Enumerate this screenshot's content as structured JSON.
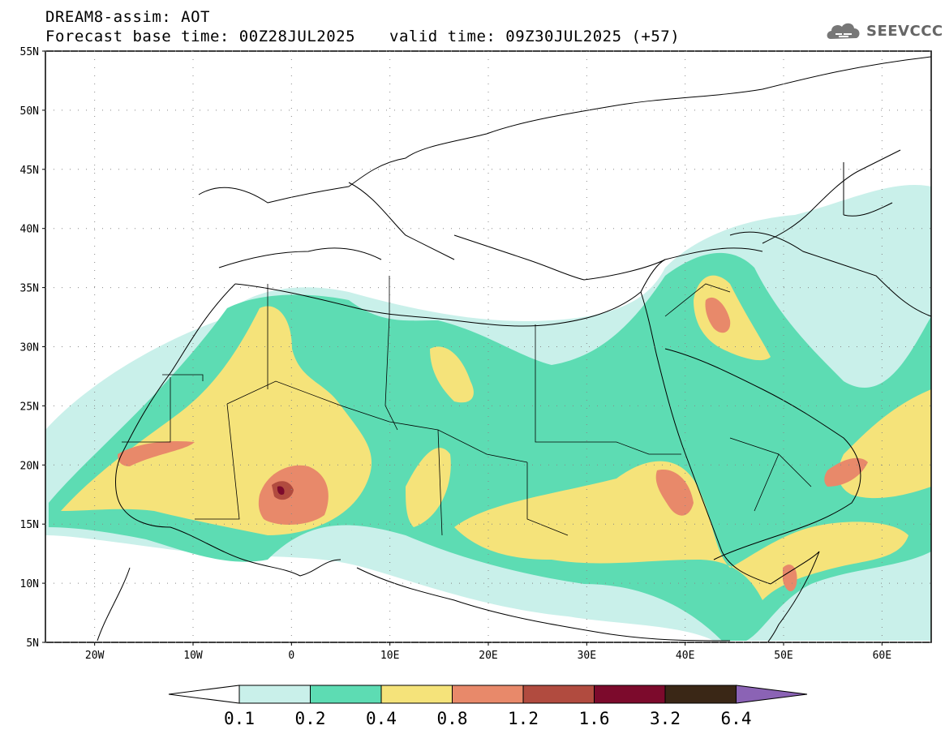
{
  "header": {
    "line1": "DREAM8-assim: AOT",
    "line2": "Forecast base time: 00Z28JUL2025",
    "valid": "valid time: 09Z30JUL2025 (+57)",
    "logo_text": "SEEVCCC"
  },
  "map": {
    "lon_range": [
      -25,
      65
    ],
    "lat_range": [
      5,
      55
    ],
    "lat_ticks": [
      "55N",
      "50N",
      "45N",
      "40N",
      "35N",
      "30N",
      "25N",
      "20N",
      "15N",
      "10N",
      "5N"
    ],
    "lon_ticks": [
      "20W",
      "10W",
      "0",
      "10E",
      "20E",
      "30E",
      "40E",
      "50E",
      "60E"
    ],
    "field": "AOT",
    "colors": {
      "c1": "#c9f0ea",
      "c2": "#5ddcb3",
      "c3": "#f5e37a",
      "c4": "#e8896a",
      "c5": "#b14b3f",
      "c6": "#7c0a2c",
      "c7": "#3a2716",
      "c8": "#8b63b5"
    }
  },
  "colorbar": {
    "labels": [
      "0.1",
      "0.2",
      "0.4",
      "0.8",
      "1.2",
      "1.6",
      "3.2",
      "6.4"
    ],
    "colors": [
      "#c9f0ea",
      "#5ddcb3",
      "#f5e37a",
      "#e8896a",
      "#b14b3f",
      "#7c0a2c",
      "#3a2716"
    ],
    "below_color": "#ffffff",
    "above_color": "#8b63b5"
  }
}
